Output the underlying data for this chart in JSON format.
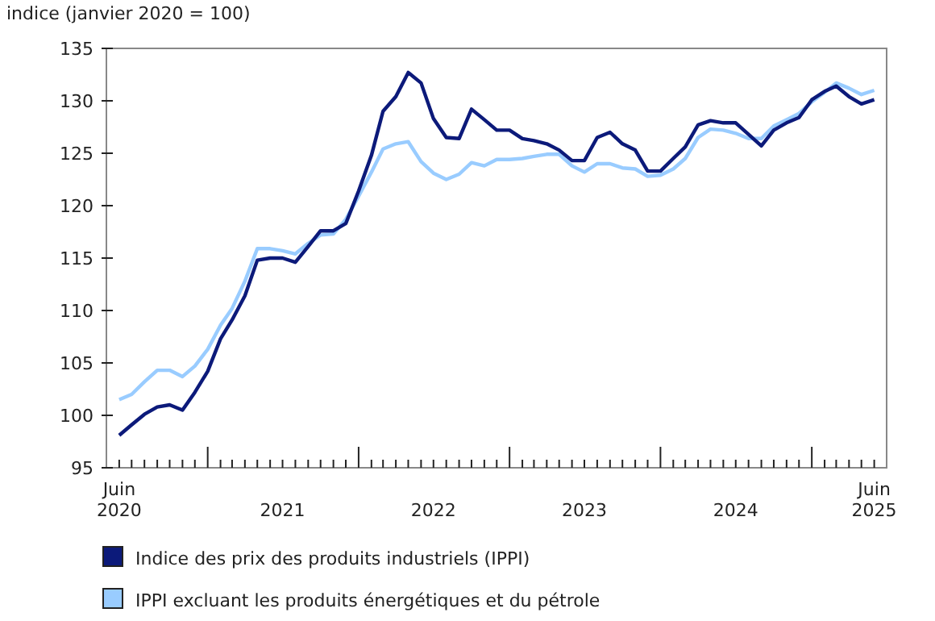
{
  "chart_data": {
    "type": "line",
    "ylabel": "indice (janvier 2020 = 100)",
    "x": [
      "2020-06",
      "2020-07",
      "2020-08",
      "2020-09",
      "2020-10",
      "2020-11",
      "2020-12",
      "2021-01",
      "2021-02",
      "2021-03",
      "2021-04",
      "2021-05",
      "2021-06",
      "2021-07",
      "2021-08",
      "2021-09",
      "2021-10",
      "2021-11",
      "2021-12",
      "2022-01",
      "2022-02",
      "2022-03",
      "2022-04",
      "2022-05",
      "2022-06",
      "2022-07",
      "2022-08",
      "2022-09",
      "2022-10",
      "2022-11",
      "2022-12",
      "2023-01",
      "2023-02",
      "2023-03",
      "2023-04",
      "2023-05",
      "2023-06",
      "2023-07",
      "2023-08",
      "2023-09",
      "2023-10",
      "2023-11",
      "2023-12",
      "2024-01",
      "2024-02",
      "2024-03",
      "2024-04",
      "2024-05",
      "2024-06",
      "2024-07",
      "2024-08",
      "2024-09",
      "2024-10",
      "2024-11",
      "2024-12",
      "2025-01",
      "2025-02",
      "2025-03",
      "2025-04",
      "2025-05",
      "2025-06"
    ],
    "series": [
      {
        "name": "Indice des prix des produits industriels (IPPI)",
        "color": "#0c1a7a",
        "values": [
          98.1,
          99.1,
          100.1,
          100.8,
          101.0,
          100.5,
          102.2,
          104.2,
          107.3,
          109.1,
          111.4,
          114.8,
          115.0,
          115.0,
          114.6,
          116.1,
          117.6,
          117.6,
          118.3,
          121.4,
          124.8,
          129.0,
          130.4,
          132.7,
          131.7,
          128.3,
          126.5,
          126.4,
          129.2,
          128.2,
          127.2,
          127.2,
          126.4,
          126.2,
          125.9,
          125.3,
          124.3,
          124.3,
          126.5,
          127.0,
          125.9,
          125.3,
          123.3,
          123.3,
          124.5,
          125.6,
          127.7,
          128.1,
          127.9,
          127.9,
          126.8,
          125.7,
          127.2,
          127.9,
          128.4,
          130.1,
          130.9,
          131.4,
          130.4,
          129.7,
          130.1
        ]
      },
      {
        "name": "IPPI excluant les produits énergétiques et du pétrole",
        "color": "#99ccff",
        "values": [
          101.5,
          102.0,
          103.2,
          104.3,
          104.3,
          103.7,
          104.7,
          106.3,
          108.6,
          110.2,
          112.8,
          115.9,
          115.9,
          115.7,
          115.4,
          116.4,
          117.2,
          117.3,
          118.7,
          120.9,
          123.2,
          125.4,
          125.9,
          126.1,
          124.2,
          123.1,
          122.5,
          123.0,
          124.1,
          123.8,
          124.4,
          124.4,
          124.5,
          124.7,
          124.9,
          124.9,
          123.8,
          123.2,
          124.0,
          124.0,
          123.6,
          123.5,
          122.8,
          122.9,
          123.5,
          124.5,
          126.5,
          127.3,
          127.2,
          126.9,
          126.4,
          126.4,
          127.6,
          128.2,
          128.8,
          129.9,
          130.8,
          131.7,
          131.2,
          130.6,
          131.0
        ]
      }
    ],
    "xlim": [
      "2020-05",
      "2025-07"
    ],
    "xticks": [
      {
        "value": "2020-06",
        "label": "Juin 2020"
      },
      {
        "value": "2020-07",
        "label": null
      },
      {
        "value": "2020-08",
        "label": null
      },
      {
        "value": "2020-09",
        "label": null
      },
      {
        "value": "2020-10",
        "label": null
      },
      {
        "value": "2020-11",
        "label": null
      },
      {
        "value": "2020-12",
        "label": null
      },
      {
        "value": "2021-01",
        "label": null
      },
      {
        "value": "2021-02",
        "label": null
      },
      {
        "value": "2021-03",
        "label": null
      },
      {
        "value": "2021-04",
        "label": null
      },
      {
        "value": "2021-05",
        "label": null
      },
      {
        "value": "2021-06",
        "label": null
      },
      {
        "value": "2021-07",
        "label": "2021"
      },
      {
        "value": "2021-08",
        "label": null
      },
      {
        "value": "2021-09",
        "label": null
      },
      {
        "value": "2021-10",
        "label": null
      },
      {
        "value": "2021-11",
        "label": null
      },
      {
        "value": "2021-12",
        "label": null
      },
      {
        "value": "2022-01",
        "label": null
      },
      {
        "value": "2022-02",
        "label": null
      },
      {
        "value": "2022-03",
        "label": null
      },
      {
        "value": "2022-04",
        "label": null
      },
      {
        "value": "2022-05",
        "label": null
      },
      {
        "value": "2022-06",
        "label": null
      },
      {
        "value": "2022-07",
        "label": "2022"
      },
      {
        "value": "2022-08",
        "label": null
      },
      {
        "value": "2022-09",
        "label": null
      },
      {
        "value": "2022-10",
        "label": null
      },
      {
        "value": "2022-11",
        "label": null
      },
      {
        "value": "2022-12",
        "label": null
      },
      {
        "value": "2023-01",
        "label": null
      },
      {
        "value": "2023-02",
        "label": null
      },
      {
        "value": "2023-03",
        "label": null
      },
      {
        "value": "2023-04",
        "label": null
      },
      {
        "value": "2023-05",
        "label": null
      },
      {
        "value": "2023-06",
        "label": null
      },
      {
        "value": "2023-07",
        "label": "2023"
      },
      {
        "value": "2023-08",
        "label": null
      },
      {
        "value": "2023-09",
        "label": null
      },
      {
        "value": "2023-10",
        "label": null
      },
      {
        "value": "2023-11",
        "label": null
      },
      {
        "value": "2023-12",
        "label": null
      },
      {
        "value": "2024-01",
        "label": null
      },
      {
        "value": "2024-02",
        "label": null
      },
      {
        "value": "2024-03",
        "label": null
      },
      {
        "value": "2024-04",
        "label": null
      },
      {
        "value": "2024-05",
        "label": null
      },
      {
        "value": "2024-06",
        "label": null
      },
      {
        "value": "2024-07",
        "label": "2024"
      },
      {
        "value": "2024-08",
        "label": null
      },
      {
        "value": "2024-09",
        "label": null
      },
      {
        "value": "2024-10",
        "label": null
      },
      {
        "value": "2024-11",
        "label": null
      },
      {
        "value": "2024-12",
        "label": null
      },
      {
        "value": "2025-01",
        "label": null
      },
      {
        "value": "2025-02",
        "label": null
      },
      {
        "value": "2025-03",
        "label": null
      },
      {
        "value": "2025-04",
        "label": null
      },
      {
        "value": "2025-05",
        "label": null
      },
      {
        "value": "2025-06",
        "label": "Juin 2025"
      }
    ],
    "ylim": [
      95,
      135
    ],
    "yticks": [
      95,
      100,
      105,
      110,
      115,
      120,
      125,
      130,
      135
    ],
    "legend": "bottom",
    "line_style": "solid"
  }
}
